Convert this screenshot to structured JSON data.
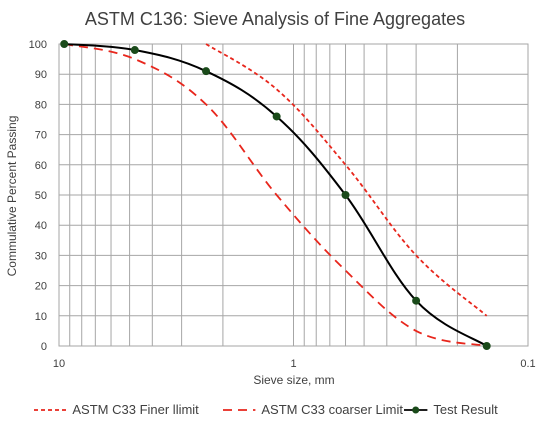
{
  "chart_data": {
    "type": "line",
    "title": "ASTM C136: Sieve Analysis of Fine Aggregates",
    "xlabel": "Sieve size, mm",
    "ylabel": "Commulative Percent Passing",
    "x_scale": "log",
    "x_reversed": true,
    "xlim": [
      10,
      0.1
    ],
    "ylim": [
      0,
      100
    ],
    "x_ticks": [
      10,
      1,
      0.1
    ],
    "x_tick_labels": [
      "10",
      "1",
      "0.1"
    ],
    "y_ticks": [
      0,
      10,
      20,
      30,
      40,
      50,
      60,
      70,
      80,
      90,
      100
    ],
    "grid": true,
    "legend_position": "bottom",
    "series": [
      {
        "name": "ASTM C33 Finer llimit",
        "color": "#e8261c",
        "style": "short-dash",
        "markers": false,
        "x": [
          2.36,
          1.18,
          0.6,
          0.3,
          0.15
        ],
        "y": [
          100,
          85,
          60,
          30,
          10
        ]
      },
      {
        "name": "ASTM C33 coarser Limit",
        "color": "#e8261c",
        "style": "long-dash",
        "markers": false,
        "x": [
          9.5,
          4.75,
          2.36,
          1.18,
          0.6,
          0.3,
          0.15
        ],
        "y": [
          100,
          95,
          80,
          50,
          25,
          5,
          0
        ]
      },
      {
        "name": "Test Result",
        "color": "#000000",
        "marker_color": "#1a4a1a",
        "style": "solid",
        "markers": true,
        "x": [
          9.5,
          4.75,
          2.36,
          1.18,
          0.6,
          0.3,
          0.15
        ],
        "y": [
          100,
          98,
          91,
          76,
          50,
          15,
          0
        ]
      }
    ]
  }
}
